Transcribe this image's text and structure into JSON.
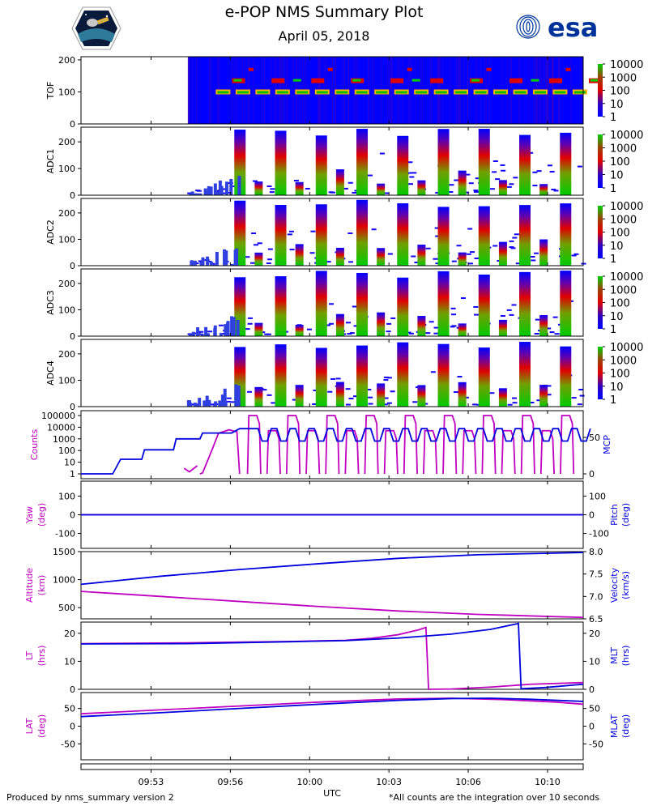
{
  "header": {
    "title": "e-POP NMS Summary Plot",
    "date": "April 05, 2018",
    "esa_logo_text": "esa"
  },
  "footer": {
    "left": "Produced by nms_summary version 2",
    "right": "*All counts are the integration over 10 seconds"
  },
  "colors": {
    "magenta": "#c000c0",
    "blue": "#0000dd",
    "spectro_bg": "#0000ff",
    "esa_navy": "#003399"
  },
  "chart_data": [
    {
      "type": "heatmap",
      "ylabel": "TOF",
      "yticks": [
        "0",
        "100",
        "200"
      ],
      "ylim": [
        0,
        210
      ],
      "colorbar_labels": [
        "10000",
        "1000",
        "100",
        "10",
        "1"
      ],
      "note": "Data begins at ~09:54; bands near 100 and 135 with bursts every ~30 s"
    },
    {
      "type": "heatmap",
      "ylabel": "ADC1",
      "yticks": [
        "0",
        "100",
        "200"
      ],
      "ylim": [
        0,
        255
      ],
      "colorbar_labels": [
        "10000",
        "1000",
        "100",
        "10",
        "1"
      ]
    },
    {
      "type": "heatmap",
      "ylabel": "ADC2",
      "yticks": [
        "0",
        "100",
        "200"
      ],
      "ylim": [
        0,
        255
      ],
      "colorbar_labels": [
        "10000",
        "1000",
        "100",
        "10",
        "1"
      ]
    },
    {
      "type": "heatmap",
      "ylabel": "ADC3",
      "yticks": [
        "0",
        "100",
        "200"
      ],
      "ylim": [
        0,
        255
      ],
      "colorbar_labels": [
        "10000",
        "1000",
        "100",
        "10",
        "1"
      ]
    },
    {
      "type": "heatmap",
      "ylabel": "ADC4",
      "yticks": [
        "0",
        "100",
        "200"
      ],
      "ylim": [
        0,
        255
      ],
      "colorbar_labels": [
        "10000",
        "1000",
        "100",
        "10",
        "1"
      ]
    },
    {
      "type": "line",
      "ylabel_left": "Counts",
      "ylabel_right": "MCP",
      "yticks_left": [
        "1",
        "10",
        "100",
        "1000",
        "10000",
        "100000"
      ],
      "yticks_right": [
        "0",
        "50"
      ],
      "series": [
        {
          "name": "Counts",
          "color": "magenta",
          "note": "log scale; rises from ~09:54, then cycles 1 to ~1e5 every ~30 s"
        },
        {
          "name": "MCP",
          "color": "blue",
          "steps": [
            [
              0,
              0
            ],
            [
              1.2,
              0
            ],
            [
              1.5,
              20
            ],
            [
              2.3,
              20
            ],
            [
              2.4,
              33
            ],
            [
              3.5,
              33
            ],
            [
              3.6,
              48
            ],
            [
              4.5,
              48
            ],
            [
              4.6,
              56
            ],
            [
              5.7,
              56
            ],
            [
              6.0,
              62
            ],
            [
              6.6,
              62
            ]
          ]
        }
      ]
    },
    {
      "type": "line",
      "ylabel_left": "Yaw",
      "ylabel_left_unit": "(deg)",
      "ylabel_right": "Pitch",
      "ylabel_right_unit": "(deg)",
      "yticks": [
        "-100",
        "0",
        "100"
      ],
      "ylim": [
        -180,
        180
      ],
      "series": [
        {
          "name": "Yaw",
          "color": "magenta",
          "x": [
            0,
            19
          ],
          "y": [
            0,
            0
          ]
        },
        {
          "name": "Pitch",
          "color": "blue",
          "x": [
            0,
            19
          ],
          "y": [
            0,
            0
          ]
        }
      ]
    },
    {
      "type": "line",
      "ylabel_left": "Altitude",
      "ylabel_left_unit": "(km)",
      "ylabel_right": "Velocity",
      "ylabel_right_unit": "(km/s)",
      "yticks_left": [
        "500",
        "1000",
        "1500"
      ],
      "yticks_right": [
        "6.5",
        "7.0",
        "7.5",
        "8.0"
      ],
      "ylim_left": [
        300,
        1500
      ],
      "ylim_right": [
        6.5,
        8.0
      ],
      "series": [
        {
          "name": "Altitude",
          "color": "magenta",
          "x": [
            0,
            3,
            6,
            9,
            12,
            15,
            19
          ],
          "y": [
            790,
            700,
            610,
            520,
            440,
            380,
            325
          ]
        },
        {
          "name": "Velocity",
          "color": "blue",
          "x": [
            0,
            3,
            6,
            9,
            12,
            15,
            19
          ],
          "y": [
            7.27,
            7.45,
            7.6,
            7.73,
            7.85,
            7.93,
            7.98
          ]
        }
      ]
    },
    {
      "type": "line",
      "ylabel_left": "LT",
      "ylabel_left_unit": "(hrs)",
      "ylabel_right": "MLT",
      "ylabel_right_unit": "(hrs)",
      "yticks": [
        "0",
        "10",
        "20"
      ],
      "ylim": [
        0,
        24
      ],
      "series": [
        {
          "name": "LT",
          "color": "magenta",
          "x": [
            0,
            4,
            8,
            10,
            11,
            12,
            12.8,
            13.05,
            13.15,
            14,
            15.5,
            17,
            19
          ],
          "y": [
            16.3,
            16.6,
            17.1,
            17.5,
            18.2,
            19.5,
            21.3,
            22.1,
            0,
            0.1,
            0.8,
            1.8,
            2.4
          ]
        },
        {
          "name": "MLT",
          "color": "blue",
          "x": [
            0,
            4,
            8,
            10,
            12,
            14,
            15.5,
            16.55,
            16.65,
            17.5,
            19
          ],
          "y": [
            16.2,
            16.3,
            17.0,
            17.4,
            18.3,
            19.7,
            21.4,
            23.5,
            0.2,
            0.6,
            1.8
          ]
        }
      ]
    },
    {
      "type": "line",
      "ylabel_left": "LAT",
      "ylabel_left_unit": "(deg)",
      "ylabel_right": "MLAT",
      "ylabel_right_unit": "(deg)",
      "yticks_left": [
        "-50",
        "0",
        "50"
      ],
      "yticks_right": [
        "-50",
        "0",
        "50"
      ],
      "ylim": [
        -95,
        95
      ],
      "series": [
        {
          "name": "LAT",
          "color": "magenta",
          "x": [
            0,
            3,
            6,
            9,
            12,
            14,
            16,
            18,
            19
          ],
          "y": [
            35,
            46,
            57,
            68,
            77,
            79,
            75,
            68,
            62
          ]
        },
        {
          "name": "MLAT",
          "color": "blue",
          "x": [
            0,
            3,
            6,
            9,
            12,
            14,
            15.5,
            17,
            19
          ],
          "y": [
            27,
            38,
            50,
            62,
            73,
            78,
            79,
            76,
            70
          ]
        }
      ]
    }
  ],
  "time_axis": {
    "label": "UTC",
    "ticks": [
      "09:53",
      "09:56",
      "10:00",
      "10:03",
      "10:06",
      "10:10"
    ],
    "tick_minutes": [
      2.65,
      5.65,
      8.65,
      11.65,
      14.65,
      17.65
    ],
    "range_minutes": [
      0,
      19
    ]
  }
}
